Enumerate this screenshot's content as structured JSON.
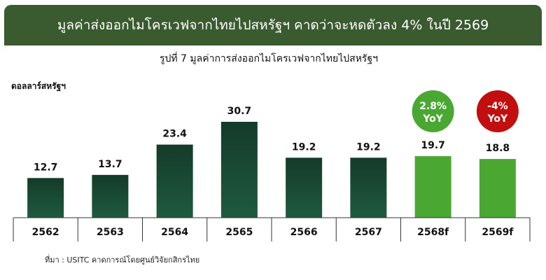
{
  "title": "มูลค่าส่งออกไมโครเวฟจากไทยไปสหรัฐฯ คาดว่าจะหดตัวลง 4% ในปี 2569",
  "subtitle": "รูปที่  7 มูลค่าการส่งออกไมโครเวฟจากไทยไปสหรัฐฯ",
  "ylabel": "ดอลลาร์สหรัฐฯ",
  "source": "ที่มา : USITC คาดการณ์โดยศูนย์วิจัยกสิกรไทย",
  "colors": {
    "header": "#3a5a2f",
    "bar_dark": "#1d4a36",
    "bar_forecast": "#4aa832",
    "badge_up": "#4aa832",
    "badge_down": "#c20e0e"
  },
  "badges": [
    {
      "category": "2568f",
      "line1": "2.8%",
      "line2": "YoY",
      "tone": "up"
    },
    {
      "category": "2569f",
      "line1": "-4%",
      "line2": "YoY",
      "tone": "down"
    }
  ],
  "chart_data": {
    "type": "bar",
    "categories": [
      "2562",
      "2563",
      "2564",
      "2565",
      "2566",
      "2567",
      "2568f",
      "2569f"
    ],
    "values": [
      12.7,
      13.7,
      23.4,
      30.7,
      19.2,
      19.2,
      19.7,
      18.8
    ],
    "forecast": [
      false,
      false,
      false,
      false,
      false,
      false,
      true,
      true
    ],
    "ylabel": "ดอลลาร์สหรัฐฯ",
    "ylim": [
      0,
      30.7
    ],
    "grid": false
  }
}
